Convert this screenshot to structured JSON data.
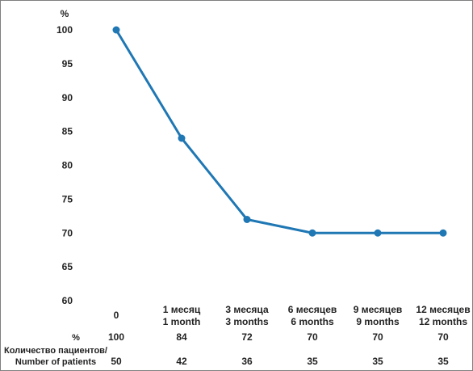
{
  "chart_data": {
    "type": "line",
    "ylabel": "%",
    "ylim": [
      60,
      100
    ],
    "yticks": [
      60,
      65,
      70,
      75,
      80,
      85,
      90,
      95,
      100
    ],
    "grid": false,
    "color": "#1f77b4",
    "categories": [
      [
        "0"
      ],
      [
        "1 месяц",
        "1 month"
      ],
      [
        "3 месяца",
        "3 months"
      ],
      [
        "6 месяцев",
        "6 months"
      ],
      [
        "9 месяцев",
        "9 months"
      ],
      [
        "12 месяцев",
        "12 months"
      ]
    ],
    "series": [
      {
        "values": [
          100,
          84,
          72,
          70,
          70,
          70
        ]
      }
    ],
    "table": {
      "rows": [
        {
          "label": [
            "%"
          ],
          "values": [
            "100",
            "84",
            "72",
            "70",
            "70",
            "70"
          ]
        },
        {
          "label": [
            "Количество пациентов/",
            "Number of patients"
          ],
          "values": [
            "50",
            "42",
            "36",
            "35",
            "35",
            "35"
          ]
        }
      ]
    }
  }
}
